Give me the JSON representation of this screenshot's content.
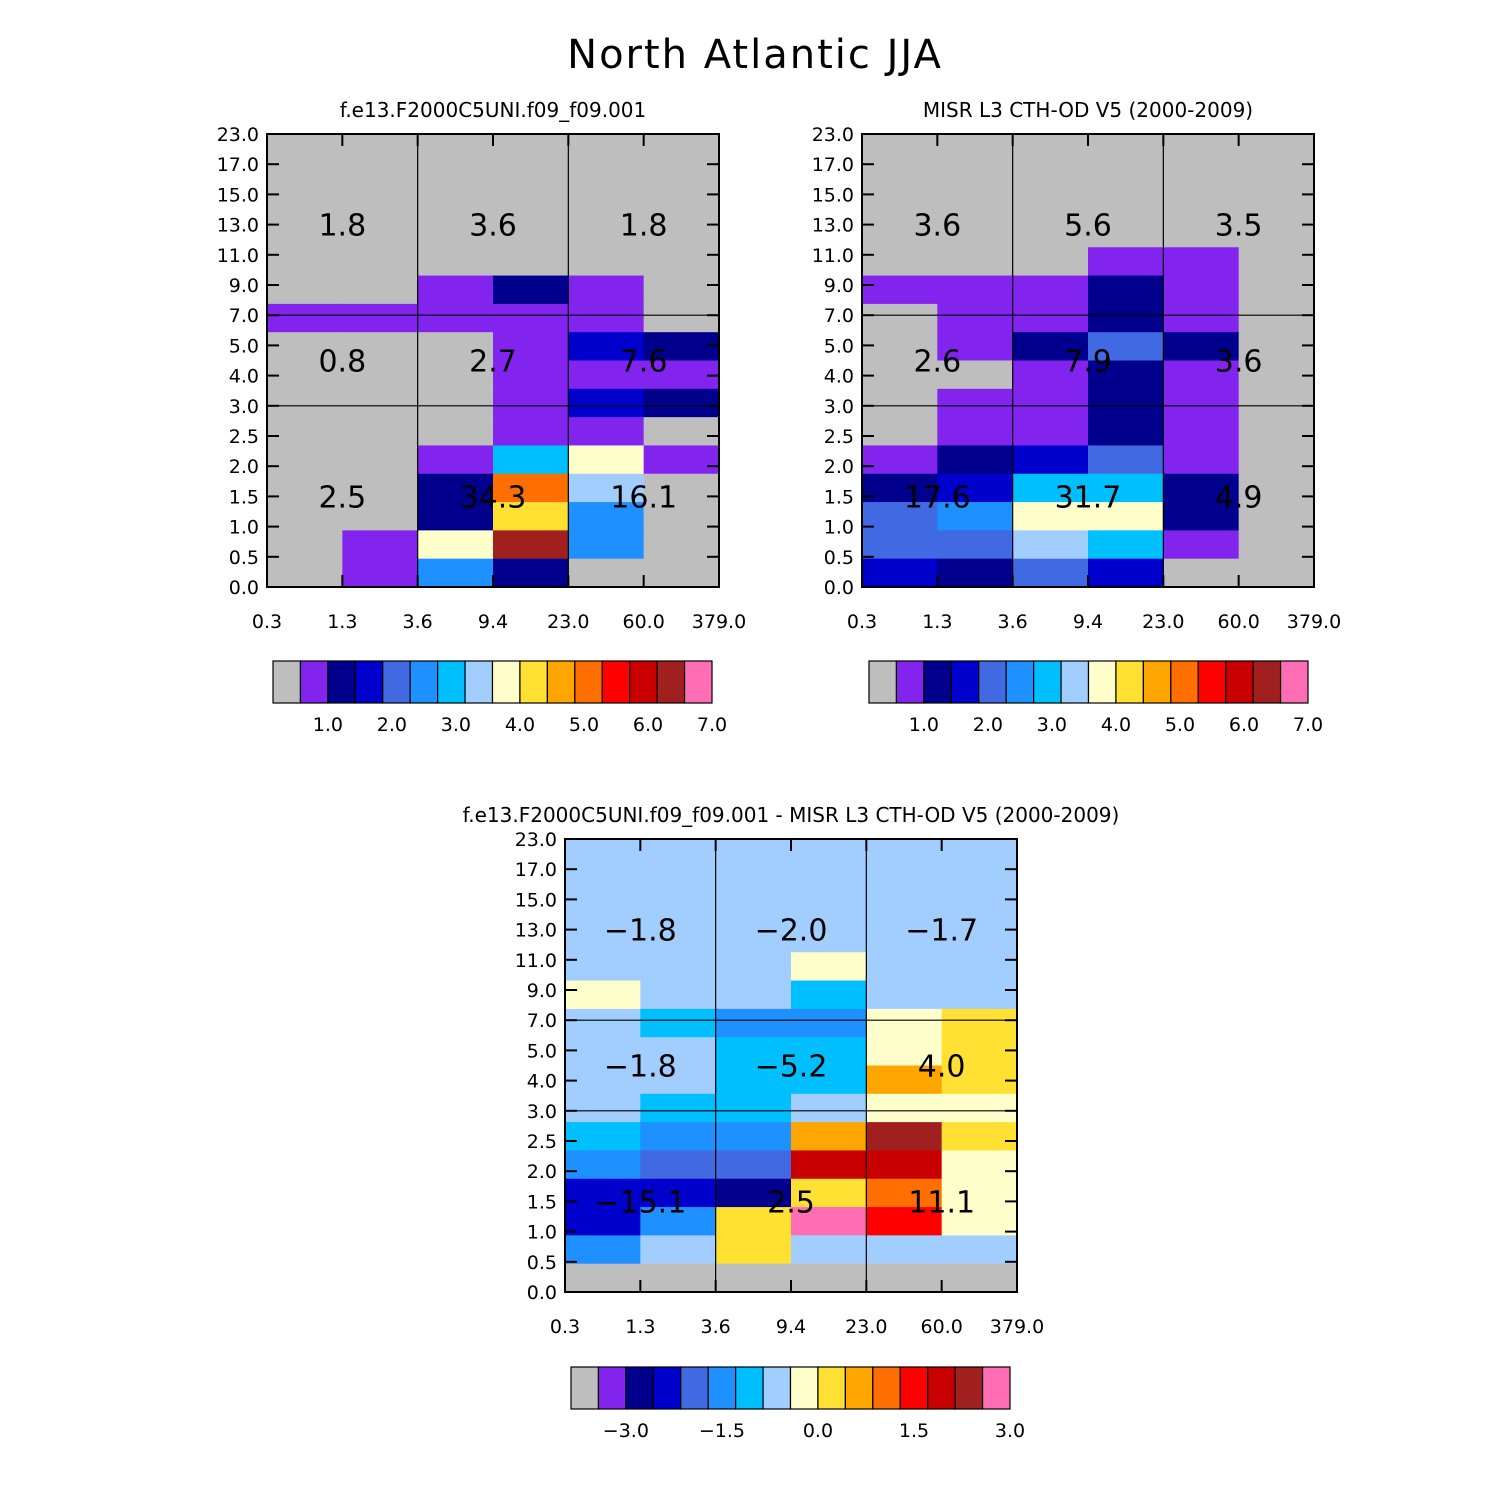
{
  "title": "North Atlantic JJA",
  "palette": [
    "#bebebe",
    "#8224ee",
    "#00008c",
    "#0000cd",
    "#4169e1",
    "#1e90ff",
    "#00bfff",
    "#a2cdff",
    "#ffffcc",
    "#ffe033",
    "#ffa500",
    "#ff6e00",
    "#ff0000",
    "#c80000",
    "#a02020",
    "#ff6eb4"
  ],
  "y_ticks": [
    "0.0",
    "0.5",
    "1.0",
    "1.5",
    "2.0",
    "2.5",
    "3.0",
    "4.0",
    "5.0",
    "7.0",
    "9.0",
    "11.0",
    "13.0",
    "15.0",
    "17.0",
    "23.0"
  ],
  "x_ticks": [
    "0.3",
    "1.3",
    "3.6",
    "9.4",
    "23.0",
    "60.0",
    "379.0"
  ],
  "chart_data": [
    {
      "type": "heatmap",
      "title": "f.e13.F2000C5UNI.f09_f09.001",
      "xlabel": "",
      "ylabel": "",
      "colorbar_labels": [
        "1.0",
        "2.0",
        "3.0",
        "4.0",
        "5.0",
        "6.0",
        "7.0"
      ],
      "summary_values": [
        [
          "1.8",
          "3.6",
          "1.8"
        ],
        [
          "0.8",
          "2.7",
          "7.6"
        ],
        [
          "2.5",
          "34.3",
          "16.1"
        ]
      ],
      "cells": [
        [
          0,
          0,
          0,
          0,
          0,
          0
        ],
        [
          0,
          0,
          0,
          0,
          0,
          0
        ],
        [
          0,
          0,
          0,
          0,
          0,
          0
        ],
        [
          0,
          0,
          0,
          0,
          0,
          0
        ],
        [
          0,
          0,
          0,
          0,
          0,
          0
        ],
        [
          0,
          0,
          1,
          2,
          1,
          0
        ],
        [
          1,
          1,
          1,
          1,
          1,
          0
        ],
        [
          0,
          0,
          0,
          1,
          3,
          2
        ],
        [
          0,
          0,
          0,
          1,
          1,
          1
        ],
        [
          0,
          0,
          0,
          1,
          3,
          2
        ],
        [
          0,
          0,
          0,
          1,
          1,
          0
        ],
        [
          0,
          0,
          1,
          6,
          8,
          1
        ],
        [
          0,
          0,
          2,
          11,
          7,
          0
        ],
        [
          0,
          0,
          2,
          9,
          5,
          0
        ],
        [
          0,
          1,
          8,
          14,
          5,
          0
        ],
        [
          0,
          1,
          5,
          2,
          0,
          0
        ]
      ]
    },
    {
      "type": "heatmap",
      "title": "MISR L3 CTH-OD V5 (2000-2009)",
      "xlabel": "",
      "ylabel": "",
      "colorbar_labels": [
        "1.0",
        "2.0",
        "3.0",
        "4.0",
        "5.0",
        "6.0",
        "7.0"
      ],
      "summary_values": [
        [
          "3.6",
          "5.6",
          "3.5"
        ],
        [
          "2.6",
          "7.9",
          "3.6"
        ],
        [
          "17.6",
          "31.7",
          "4.9"
        ]
      ],
      "cells": [
        [
          0,
          0,
          0,
          0,
          0,
          0
        ],
        [
          0,
          0,
          0,
          0,
          0,
          0
        ],
        [
          0,
          0,
          0,
          0,
          0,
          0
        ],
        [
          0,
          0,
          0,
          0,
          0,
          0
        ],
        [
          0,
          0,
          0,
          1,
          1,
          0
        ],
        [
          1,
          1,
          1,
          2,
          1,
          0
        ],
        [
          0,
          1,
          1,
          2,
          1,
          0
        ],
        [
          0,
          1,
          2,
          4,
          2,
          0
        ],
        [
          0,
          0,
          1,
          2,
          1,
          0
        ],
        [
          0,
          1,
          1,
          2,
          1,
          0
        ],
        [
          0,
          1,
          1,
          2,
          1,
          0
        ],
        [
          1,
          2,
          3,
          4,
          1,
          0
        ],
        [
          2,
          3,
          6,
          6,
          2,
          0
        ],
        [
          4,
          5,
          8,
          8,
          2,
          0
        ],
        [
          4,
          4,
          7,
          6,
          1,
          0
        ],
        [
          3,
          2,
          4,
          3,
          0,
          0
        ]
      ]
    },
    {
      "type": "heatmap",
      "title": "f.e13.F2000C5UNI.f09_f09.001 - MISR L3 CTH-OD V5 (2000-2009)",
      "xlabel": "",
      "ylabel": "",
      "colorbar_labels": [
        "−3.0",
        "−1.5",
        "0.0",
        "1.5",
        "3.0"
      ],
      "summary_values": [
        [
          "−1.8",
          "−2.0",
          "−1.7"
        ],
        [
          "−1.8",
          "−5.2",
          "4.0"
        ],
        [
          "−15.1",
          "2.5",
          "11.1"
        ]
      ],
      "cells": [
        [
          7,
          7,
          7,
          7,
          7,
          7
        ],
        [
          7,
          7,
          7,
          7,
          7,
          7
        ],
        [
          7,
          7,
          7,
          7,
          7,
          7
        ],
        [
          7,
          7,
          7,
          7,
          7,
          7
        ],
        [
          7,
          7,
          7,
          8,
          7,
          7
        ],
        [
          8,
          7,
          7,
          6,
          7,
          7
        ],
        [
          7,
          6,
          5,
          5,
          8,
          9
        ],
        [
          7,
          7,
          6,
          6,
          8,
          9
        ],
        [
          7,
          7,
          6,
          6,
          10,
          9
        ],
        [
          7,
          6,
          6,
          7,
          8,
          8
        ],
        [
          6,
          5,
          5,
          10,
          14,
          9
        ],
        [
          5,
          4,
          4,
          13,
          13,
          8
        ],
        [
          3,
          3,
          2,
          9,
          11,
          8
        ],
        [
          3,
          5,
          9,
          15,
          12,
          8
        ],
        [
          5,
          7,
          9,
          7,
          7,
          7
        ],
        [
          0,
          0,
          0,
          0,
          0,
          0
        ]
      ]
    }
  ]
}
